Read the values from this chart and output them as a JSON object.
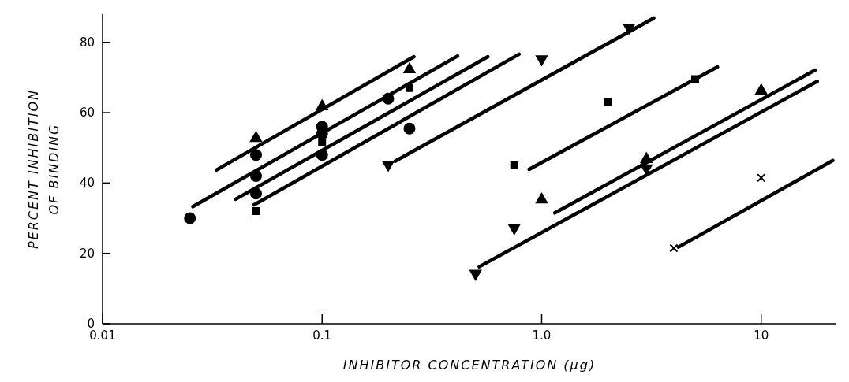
{
  "chart_data": {
    "type": "scatter",
    "xlabel": "INHIBITOR CONCENTRATION (μg)",
    "ylabel": "PERCENT INHIBITION\nOF BINDING",
    "log": "x",
    "grid": false,
    "xlim": [
      0.01,
      22
    ],
    "xticks": [
      0.01,
      0.1,
      {
        "value": 1,
        "label": "1.0"
      },
      10
    ],
    "ylim": [
      0,
      88
    ],
    "yticks": [
      0,
      20,
      40,
      60,
      80
    ],
    "series": [
      {
        "marker": "triangle",
        "color": "#000000",
        "x": [
          0.05,
          0.1,
          0.25
        ],
        "values": [
          53,
          62,
          72.5
        ]
      },
      {
        "marker": "circle",
        "color": "#000000",
        "x": [
          0.025,
          0.05,
          0.05,
          0.1,
          0.1,
          0.2
        ],
        "values": [
          30,
          48,
          42,
          56,
          54,
          64
        ]
      },
      {
        "marker": "square",
        "color": "#000000",
        "x": [
          0.05,
          0.1,
          0.25
        ],
        "values": [
          32,
          51.5,
          67
        ]
      },
      {
        "marker": "circle",
        "color": "#000000",
        "x": [
          0.05,
          0.1,
          0.25
        ],
        "values": [
          37,
          48,
          55.5
        ]
      },
      {
        "marker": "triangle-down",
        "color": "#000000",
        "x": [
          0.2,
          1,
          2.5
        ],
        "values": [
          45,
          75,
          84
        ]
      },
      {
        "marker": "square",
        "color": "#000000",
        "x": [
          0.75,
          2,
          5
        ],
        "values": [
          45,
          63,
          69.5
        ]
      },
      {
        "marker": "triangle",
        "color": "#000000",
        "x": [
          1,
          3,
          10
        ],
        "values": [
          35.5,
          47,
          66.5
        ]
      },
      {
        "marker": "triangle-down",
        "color": "#000000",
        "x": [
          0.5,
          0.75,
          3
        ],
        "values": [
          14,
          27,
          44
        ]
      },
      {
        "marker": "cross",
        "color": "#000000",
        "x": [
          4,
          10
        ],
        "values": [
          21.5,
          41.5
        ]
      },
      {
        "type": "line",
        "color": "#000000",
        "x": [
          0.033,
          0.262
        ],
        "values": [
          43.7,
          75.9
        ]
      },
      {
        "type": "line",
        "color": "#000000",
        "x": [
          0.0258,
          0.414
        ],
        "values": [
          33.3,
          76.1
        ]
      },
      {
        "type": "line",
        "color": "#000000",
        "x": [
          0.0404,
          0.569
        ],
        "values": [
          35.4,
          75.9
        ]
      },
      {
        "type": "line",
        "color": "#000000",
        "x": [
          0.049,
          0.789
        ],
        "values": [
          33.8,
          76.6
        ]
      },
      {
        "type": "line",
        "color": "#000000",
        "x": [
          0.215,
          3.24
        ],
        "values": [
          46.2,
          86.9
        ]
      },
      {
        "type": "line",
        "color": "#000000",
        "x": [
          0.877,
          6.32
        ],
        "values": [
          43.9,
          73
        ]
      },
      {
        "type": "line",
        "color": "#000000",
        "x": [
          1.148,
          17.6
        ],
        "values": [
          31.5,
          72.1
        ]
      },
      {
        "type": "line",
        "color": "#000000",
        "x": [
          0.52,
          18
        ],
        "values": [
          16.2,
          68.9
        ]
      },
      {
        "type": "line",
        "color": "#000000",
        "x": [
          4.2,
          21.2
        ],
        "values": [
          21.8,
          46.4
        ]
      }
    ]
  }
}
